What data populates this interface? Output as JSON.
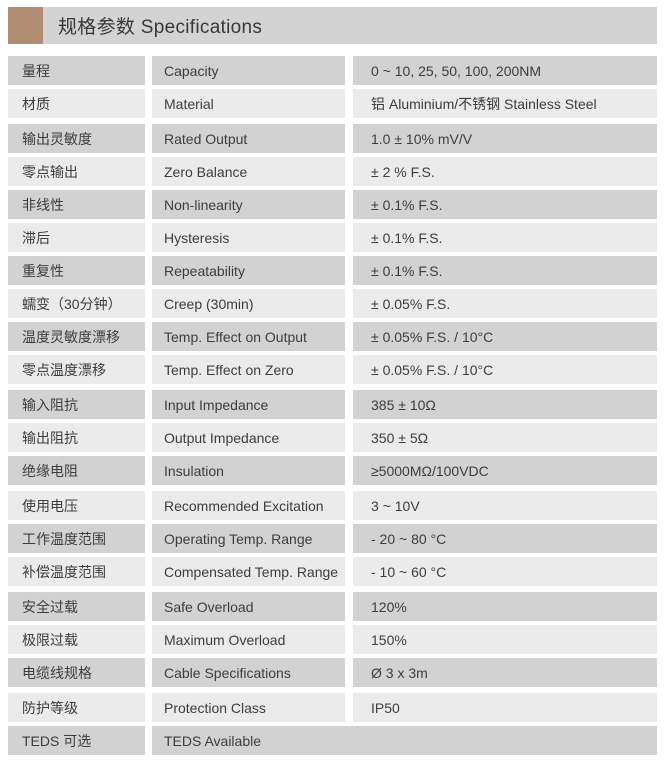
{
  "header": {
    "title": "规格参数 Specifications"
  },
  "colors": {
    "accent": "#b18e73",
    "header_bar": "#d3d3d3",
    "row_dark": "#d2d2d2",
    "row_light": "#ebebeb",
    "text": "#3d3d3d"
  },
  "table": {
    "columns": [
      "label_cn",
      "label_en",
      "value"
    ],
    "groups": [
      {
        "rows": [
          {
            "cn": "量程",
            "en": "Capacity",
            "value": "0 ~ 10, 25, 50, 100, 200NM"
          },
          {
            "cn": "材质",
            "en": "Material",
            "value": "铝  Aluminium/不锈钢 Stainless Steel"
          }
        ]
      },
      {
        "rows": [
          {
            "cn": "输出灵敏度",
            "en": "Rated Output",
            "value": "1.0 ± 10% mV/V"
          },
          {
            "cn": "零点输出",
            "en": "Zero Balance",
            "value": "± 2 % F.S."
          },
          {
            "cn": "非线性",
            "en": "Non-linearity",
            "value": "± 0.1% F.S."
          },
          {
            "cn": "滞后",
            "en": "Hysteresis",
            "value": "± 0.1% F.S."
          },
          {
            "cn": "重复性",
            "en": "Repeatability",
            "value": "± 0.1% F.S."
          },
          {
            "cn": "蠕变（30分钟）",
            "en": "Creep (30min)",
            "value": "± 0.05% F.S."
          },
          {
            "cn": "温度灵敏度漂移",
            "en": "Temp. Effect on Output",
            "value": "± 0.05% F.S. / 10°C"
          },
          {
            "cn": "零点温度漂移",
            "en": "Temp. Effect on Zero",
            "value": "± 0.05% F.S. / 10°C"
          }
        ]
      },
      {
        "rows": [
          {
            "cn": "输入阻抗",
            "en": "Input Impedance",
            "value": "385 ± 10Ω"
          },
          {
            "cn": "输出阻抗",
            "en": "Output Impedance",
            "value": "350 ± 5Ω"
          },
          {
            "cn": "绝缘电阻",
            "en": "Insulation",
            "value": "≥5000MΩ/100VDC"
          }
        ]
      },
      {
        "rows": [
          {
            "cn": "使用电压",
            "en": "Recommended Excitation",
            "value": "3 ~ 10V"
          },
          {
            "cn": "工作温度范围",
            "en": "Operating Temp. Range",
            "value": "- 20 ~ 80 °C"
          },
          {
            "cn": "补偿温度范围",
            "en": "Compensated Temp. Range",
            "value": "- 10 ~ 60 °C"
          }
        ]
      },
      {
        "rows": [
          {
            "cn": "安全过载",
            "en": "Safe Overload",
            "value": "120%"
          },
          {
            "cn": "极限过载",
            "en": "Maximum Overload",
            "value": "150%"
          },
          {
            "cn": "电缆线规格",
            "en": "Cable Specifications",
            "value": "Ø 3 x 3m"
          }
        ]
      },
      {
        "rows": [
          {
            "cn": "防护等级",
            "en": "Protection Class",
            "value": "IP50"
          },
          {
            "cn": "TEDS 可选",
            "en": "TEDS Available",
            "value": "",
            "merged": true
          }
        ]
      }
    ]
  }
}
